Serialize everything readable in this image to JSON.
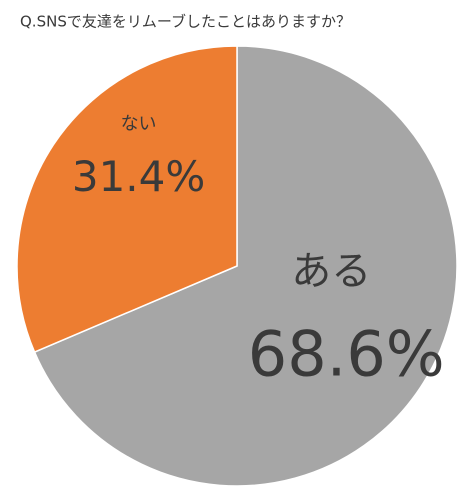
{
  "chart_data": {
    "type": "pie",
    "title": "Q.SNSで友達をリムーブしたことはありますか？",
    "categories": [
      "ある",
      "ない"
    ],
    "values": [
      68.6,
      31.4
    ],
    "value_labels": [
      "68.6%",
      "31.4%"
    ],
    "colors": [
      "#a6a6a6",
      "#ed7d31"
    ]
  }
}
